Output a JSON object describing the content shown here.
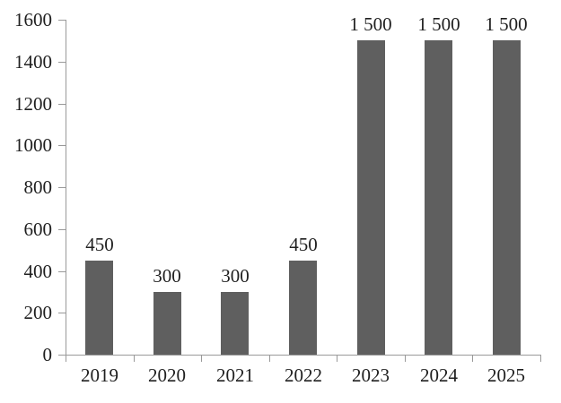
{
  "chart_data": {
    "type": "bar",
    "title": "",
    "categories": [
      "2019",
      "2020",
      "2021",
      "2022",
      "2023",
      "2024",
      "2025"
    ],
    "values": [
      450,
      300,
      300,
      450,
      1500,
      1500,
      1500
    ],
    "value_labels": [
      "450",
      "300",
      "300",
      "450",
      "1 500",
      "1 500",
      "1 500"
    ],
    "ylim": [
      0,
      1600
    ],
    "ytick_step": 200,
    "yticks": [
      0,
      200,
      400,
      600,
      800,
      1000,
      1200,
      1400,
      1600
    ],
    "ytick_labels": [
      "0",
      "200",
      "400",
      "600",
      "800",
      "1000",
      "1200",
      "1400",
      "1600"
    ],
    "xlabel": "",
    "ylabel": "",
    "grid": false,
    "legend": false,
    "colors": {
      "bar": "#5f5f5f",
      "axis": "#999999",
      "text": "#1f1f1f",
      "background": "#ffffff"
    }
  }
}
